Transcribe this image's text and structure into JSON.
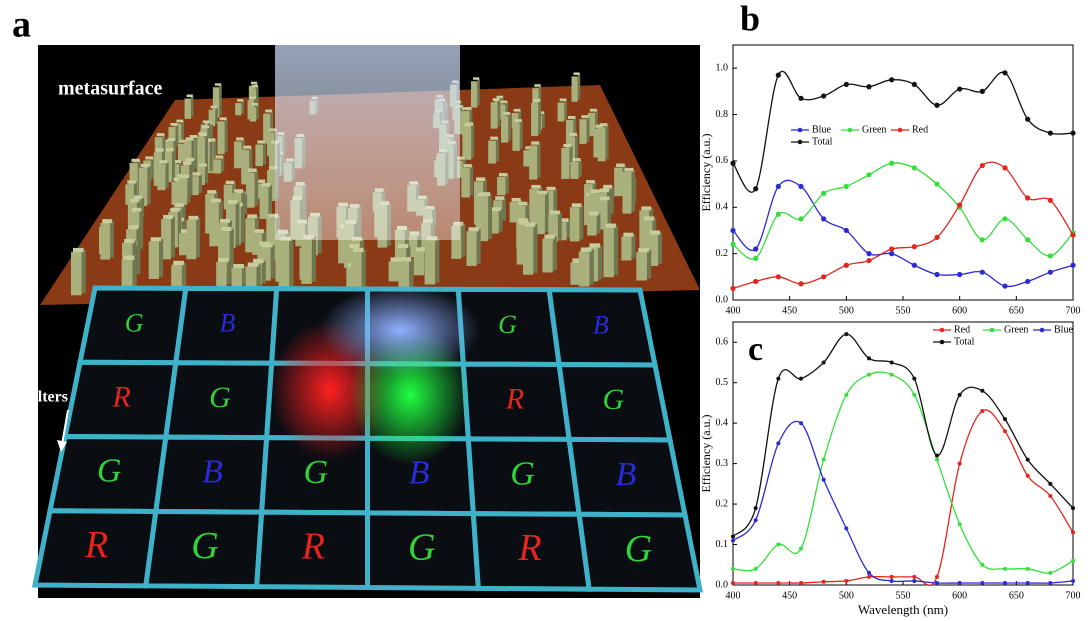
{
  "panel_a": {
    "label": "a",
    "metasurface_label": "metasurface",
    "filters_label": "filters",
    "filter_letters": [
      [
        "G",
        "B",
        null,
        null,
        "G",
        "B"
      ],
      [
        "R",
        "G",
        null,
        null,
        "R",
        "G"
      ],
      [
        "G",
        "B",
        "G",
        "B",
        "G",
        "B"
      ],
      [
        "R",
        "G",
        "R",
        "G",
        "R",
        "G"
      ]
    ],
    "letter_colors": {
      "G": "#33d13a",
      "B": "#2a2ad6",
      "R": "#e5241e"
    }
  },
  "chart_data": [
    {
      "type": "line",
      "panel_label": "b",
      "y_label": "Efficiency (a.u.)",
      "legend": "center",
      "x": [
        400,
        420,
        440,
        460,
        480,
        500,
        520,
        540,
        560,
        580,
        600,
        620,
        640,
        660,
        680,
        700
      ],
      "xlim": [
        400,
        700
      ],
      "xticks": [
        400,
        450,
        500,
        550,
        600,
        650,
        700
      ],
      "ylim": [
        0,
        1.1
      ],
      "yticks": [
        {
          "value": 0,
          "label": "0.0"
        },
        {
          "value": 0.2,
          "label": "0.2"
        },
        {
          "value": 0.4,
          "label": "0.4"
        },
        {
          "value": 0.6,
          "label": "0.6"
        },
        {
          "value": 0.8,
          "label": "0.8"
        },
        {
          "value": 1,
          "label": "1.0"
        }
      ],
      "series": [
        {
          "name": "Blue",
          "color": "#2a2ad6",
          "values": [
            0.3,
            0.22,
            0.49,
            0.49,
            0.35,
            0.3,
            0.2,
            0.2,
            0.15,
            0.11,
            0.11,
            0.12,
            0.06,
            0.08,
            0.12,
            0.15
          ]
        },
        {
          "name": "Green",
          "color": "#33e03a",
          "values": [
            0.24,
            0.18,
            0.37,
            0.35,
            0.46,
            0.49,
            0.54,
            0.59,
            0.57,
            0.5,
            0.4,
            0.26,
            0.35,
            0.26,
            0.19,
            0.29
          ]
        },
        {
          "name": "Red",
          "color": "#e5241e",
          "values": [
            0.05,
            0.08,
            0.1,
            0.07,
            0.1,
            0.15,
            0.17,
            0.22,
            0.23,
            0.27,
            0.41,
            0.58,
            0.57,
            0.44,
            0.43,
            0.28
          ]
        },
        {
          "name": "Total",
          "color": "#111111",
          "values": [
            0.59,
            0.48,
            0.97,
            0.87,
            0.88,
            0.93,
            0.92,
            0.95,
            0.93,
            0.84,
            0.91,
            0.9,
            0.98,
            0.78,
            0.72,
            0.72
          ]
        }
      ]
    },
    {
      "type": "line",
      "panel_label": "c",
      "y_label": "Efficiency (a.u.)",
      "x_label": "Wavelength (nm)",
      "legend": "upper right",
      "x": [
        400,
        420,
        440,
        460,
        480,
        500,
        520,
        540,
        560,
        580,
        600,
        620,
        640,
        660,
        680,
        700
      ],
      "xlim": [
        400,
        700
      ],
      "xticks": [
        400,
        450,
        500,
        550,
        600,
        650,
        700
      ],
      "ylim": [
        0,
        0.65
      ],
      "yticks": [
        {
          "value": 0,
          "label": "0.0"
        },
        {
          "value": 0.1,
          "label": "0.1"
        },
        {
          "value": 0.2,
          "label": "0.2"
        },
        {
          "value": 0.3,
          "label": "0.3"
        },
        {
          "value": 0.4,
          "label": "0.4"
        },
        {
          "value": 0.5,
          "label": "0.5"
        },
        {
          "value": 0.6,
          "label": "0.6"
        }
      ],
      "series": [
        {
          "name": "Red",
          "color": "#e5241e",
          "values": [
            0.005,
            0.005,
            0.005,
            0.005,
            0.008,
            0.01,
            0.02,
            0.02,
            0.02,
            0.02,
            0.3,
            0.43,
            0.38,
            0.27,
            0.22,
            0.13
          ]
        },
        {
          "name": "Green",
          "color": "#33e03a",
          "values": [
            0.04,
            0.04,
            0.1,
            0.09,
            0.31,
            0.47,
            0.52,
            0.52,
            0.47,
            0.31,
            0.15,
            0.05,
            0.04,
            0.04,
            0.03,
            0.06
          ]
        },
        {
          "name": "Blue",
          "color": "#2a2ad6",
          "values": [
            0.11,
            0.16,
            0.35,
            0.4,
            0.26,
            0.14,
            0.03,
            0.01,
            0.01,
            0.005,
            0.005,
            0.005,
            0.005,
            0.005,
            0.005,
            0.01
          ]
        },
        {
          "name": "Total",
          "color": "#111111",
          "values": [
            0.12,
            0.19,
            0.51,
            0.51,
            0.55,
            0.62,
            0.56,
            0.55,
            0.51,
            0.32,
            0.47,
            0.48,
            0.41,
            0.31,
            0.25,
            0.19
          ]
        }
      ]
    }
  ]
}
